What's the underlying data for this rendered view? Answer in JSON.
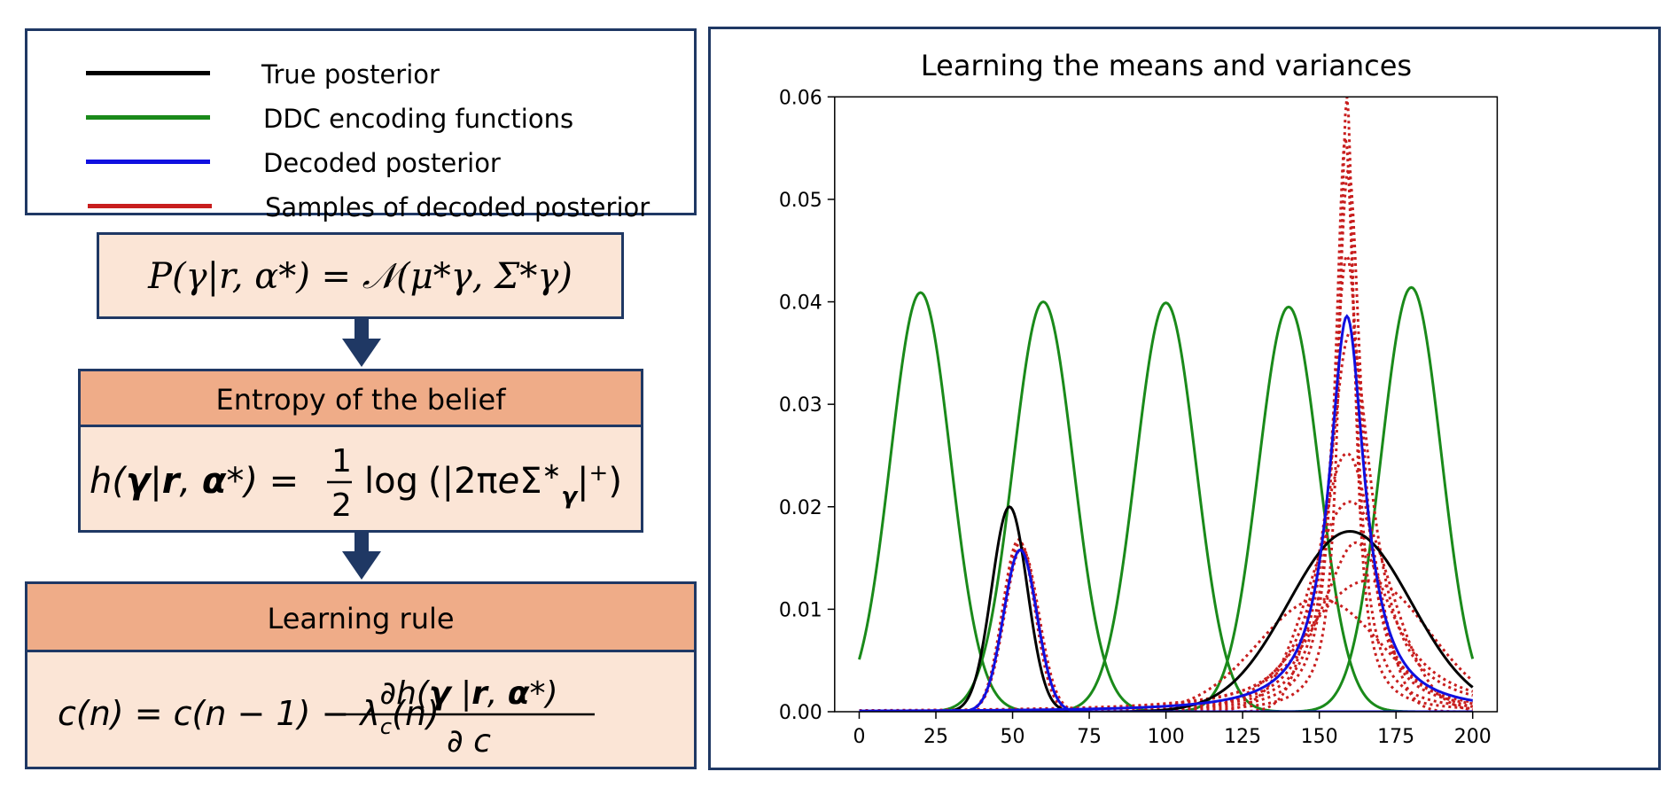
{
  "legend": {
    "items": [
      {
        "label": "True posterior",
        "color": "#000000"
      },
      {
        "label": "DDC encoding functions",
        "color": "#1a8a1a"
      },
      {
        "label": "Decoded posterior",
        "color": "#1010e0"
      },
      {
        "label": "Samples of decoded posterior",
        "color": "#c81e1e"
      }
    ]
  },
  "flow": {
    "formula1_text": "P(γ|r, α*) = 𝒩(μ*γ, Σ*γ)",
    "entropy_header": "Entropy of the belief",
    "entropy_text": "h(γ|r, α*) = ½ log(|2πeΣ*γ|⁺)",
    "rule_header": "Learning rule",
    "rule_text": "c(n) = c(n − 1) − λc(n) ∂h(γ|r, α*)/∂c"
  },
  "colors": {
    "border": "#1f3864",
    "peach": "#fbe5d6",
    "header": "#efac88",
    "green": "#1a8a1a",
    "blue": "#1010e0",
    "red": "#c81e1e",
    "black": "#000000"
  },
  "chart_data": {
    "type": "line",
    "title": "Learning the means and variances",
    "xlabel": "",
    "ylabel": "",
    "xlim": [
      -8,
      208
    ],
    "ylim": [
      0,
      0.06
    ],
    "xticks": [
      0,
      25,
      50,
      75,
      100,
      125,
      150,
      175,
      200
    ],
    "yticks": [
      0.0,
      0.01,
      0.02,
      0.03,
      0.04,
      0.05,
      0.06
    ],
    "ytick_labels": [
      "0.00",
      "0.01",
      "0.02",
      "0.03",
      "0.04",
      "0.05",
      "0.06"
    ],
    "grid": false,
    "series": [
      {
        "role": "encoding",
        "style": "solid",
        "color": "#1a8a1a",
        "kind": "gaussian",
        "mu": 20,
        "sigma": 9.8,
        "amp": 0.0409,
        "x_range": [
          0,
          200
        ]
      },
      {
        "role": "encoding",
        "style": "solid",
        "color": "#1a8a1a",
        "kind": "gaussian",
        "mu": 60,
        "sigma": 9.8,
        "amp": 0.04,
        "x_range": [
          0,
          200
        ]
      },
      {
        "role": "encoding",
        "style": "solid",
        "color": "#1a8a1a",
        "kind": "gaussian",
        "mu": 100,
        "sigma": 9.8,
        "amp": 0.0399,
        "x_range": [
          0,
          200
        ]
      },
      {
        "role": "encoding",
        "style": "solid",
        "color": "#1a8a1a",
        "kind": "gaussian",
        "mu": 140,
        "sigma": 9.8,
        "amp": 0.0395,
        "x_range": [
          0,
          200
        ]
      },
      {
        "role": "encoding",
        "style": "solid",
        "color": "#1a8a1a",
        "kind": "gaussian",
        "mu": 180,
        "sigma": 9.8,
        "amp": 0.0414,
        "x_range": [
          0,
          200
        ]
      },
      {
        "role": "true",
        "style": "solid",
        "color": "#000000",
        "kind": "gaussian",
        "mu": 49,
        "sigma": 5.8,
        "amp": 0.02,
        "x_range": [
          0,
          200
        ]
      },
      {
        "role": "true",
        "style": "solid",
        "color": "#000000",
        "kind": "gaussian",
        "mu": 160,
        "sigma": 20,
        "amp": 0.0176,
        "x_range": [
          0,
          200
        ]
      },
      {
        "role": "decoded",
        "style": "solid",
        "color": "#1010e0",
        "kind": "gaussian",
        "mu": 52.5,
        "sigma": 5.4,
        "amp": 0.0158,
        "x_range": [
          0,
          200
        ]
      },
      {
        "role": "decoded",
        "style": "solid",
        "color": "#1010e0",
        "kind": "cauchy",
        "mu": 159,
        "gamma": 7.0,
        "amp": 0.0386,
        "x_range": [
          0,
          200
        ]
      },
      {
        "role": "sample",
        "style": "dotted",
        "color": "#c81e1e",
        "kind": "gaussian",
        "mu": 52.5,
        "sigma": 5.3,
        "amp": 0.0165,
        "x_range": [
          0,
          200
        ]
      },
      {
        "role": "sample",
        "style": "dotted",
        "color": "#c81e1e",
        "kind": "gaussian",
        "mu": 53,
        "sigma": 5.5,
        "amp": 0.016,
        "x_range": [
          0,
          200
        ]
      },
      {
        "role": "sample",
        "style": "dotted",
        "color": "#c81e1e",
        "kind": "gaussian",
        "mu": 52,
        "sigma": 5.2,
        "amp": 0.0168,
        "x_range": [
          0,
          200
        ]
      },
      {
        "role": "sample",
        "style": "dotted",
        "color": "#c81e1e",
        "kind": "cauchy",
        "mu": 159,
        "gamma": 3.0,
        "amp": 0.06,
        "x_range": [
          0,
          200
        ]
      },
      {
        "role": "sample",
        "style": "dotted",
        "color": "#c81e1e",
        "kind": "cauchy",
        "mu": 158.5,
        "gamma": 4.0,
        "amp": 0.056,
        "x_range": [
          0,
          200
        ]
      },
      {
        "role": "sample",
        "style": "dotted",
        "color": "#c81e1e",
        "kind": "cauchy",
        "mu": 159.5,
        "gamma": 5.0,
        "amp": 0.053,
        "x_range": [
          0,
          200
        ]
      },
      {
        "role": "sample",
        "style": "dotted",
        "color": "#c81e1e",
        "kind": "cauchy",
        "mu": 159,
        "gamma": 6.0,
        "amp": 0.0445,
        "x_range": [
          0,
          200
        ]
      },
      {
        "role": "sample",
        "style": "dotted",
        "color": "#c81e1e",
        "kind": "cauchy",
        "mu": 160,
        "gamma": 8.5,
        "amp": 0.037,
        "x_range": [
          0,
          200
        ]
      },
      {
        "role": "sample",
        "style": "dotted",
        "color": "#c81e1e",
        "kind": "gaussian",
        "mu": 159,
        "sigma": 9.0,
        "amp": 0.0252,
        "x_range": [
          0,
          200
        ]
      },
      {
        "role": "sample",
        "style": "dotted",
        "color": "#c81e1e",
        "kind": "gaussian",
        "mu": 160,
        "sigma": 13.0,
        "amp": 0.0205,
        "x_range": [
          0,
          200
        ]
      },
      {
        "role": "sample",
        "style": "dotted",
        "color": "#c81e1e",
        "kind": "gaussian",
        "mu": 166,
        "sigma": 20.0,
        "amp": 0.0128,
        "x_range": [
          0,
          200
        ]
      },
      {
        "role": "sample",
        "style": "dotted",
        "color": "#c81e1e",
        "kind": "gaussian",
        "mu": 150,
        "sigma": 20.0,
        "amp": 0.011,
        "x_range": [
          0,
          200
        ]
      },
      {
        "role": "sample",
        "style": "dotted",
        "color": "#c81e1e",
        "kind": "cauchy",
        "mu": 162,
        "gamma": 14.0,
        "amp": 0.0165,
        "x_range": [
          0,
          200
        ]
      }
    ]
  }
}
